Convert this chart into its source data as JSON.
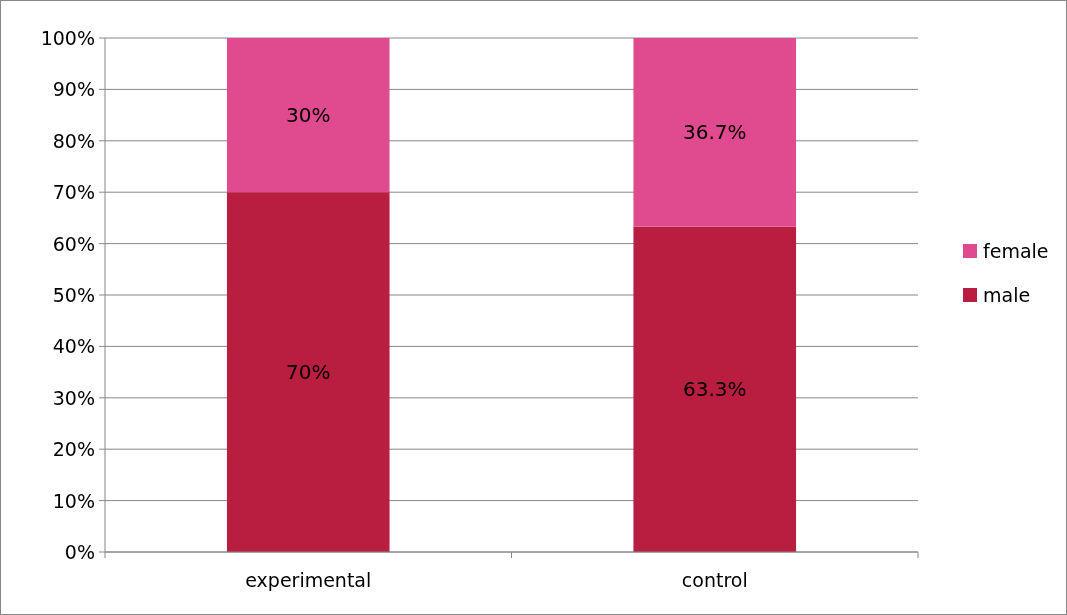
{
  "chart_data": {
    "type": "bar",
    "stacked": true,
    "categories": [
      "experimental",
      "control"
    ],
    "series": [
      {
        "name": "male",
        "color": "#b91e40",
        "values": [
          70,
          63.3
        ],
        "value_labels": [
          "70%",
          "63.3%"
        ]
      },
      {
        "name": "female",
        "color": "#e04a8f",
        "values": [
          30,
          36.7
        ],
        "value_labels": [
          "30%",
          "36.7%"
        ]
      }
    ],
    "ylim": [
      0,
      100
    ],
    "yticks": [
      {
        "value": 0,
        "label": "0%"
      },
      {
        "value": 10,
        "label": "10%"
      },
      {
        "value": 20,
        "label": "20%"
      },
      {
        "value": 30,
        "label": "30%"
      },
      {
        "value": 40,
        "label": "40%"
      },
      {
        "value": 50,
        "label": "50%"
      },
      {
        "value": 60,
        "label": "60%"
      },
      {
        "value": 70,
        "label": "70%"
      },
      {
        "value": 80,
        "label": "80%"
      },
      {
        "value": 90,
        "label": "90%"
      },
      {
        "value": 100,
        "label": "100%"
      }
    ],
    "grid": "y",
    "legend": "right"
  }
}
